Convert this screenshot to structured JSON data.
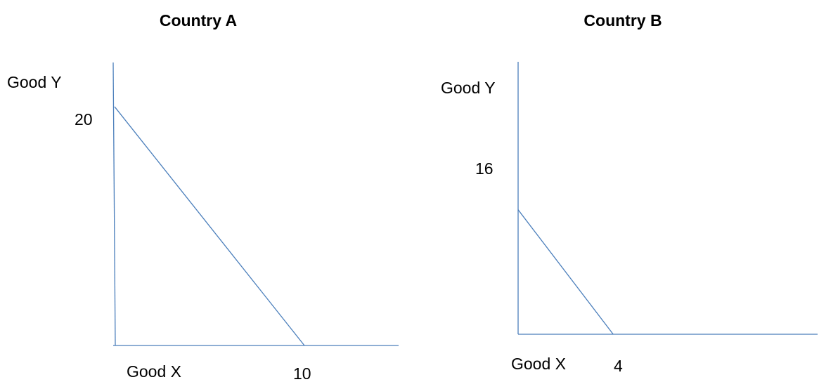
{
  "chart_data": [
    {
      "type": "line",
      "title": "Country A",
      "xlabel": "Good X",
      "ylabel": "Good Y",
      "xlim": [
        0,
        15
      ],
      "ylim": [
        0,
        23.7
      ],
      "grid": false,
      "series": [
        {
          "x": [
            0,
            10
          ],
          "y": [
            20,
            0
          ]
        }
      ],
      "intercepts": {
        "x": 10,
        "y": 20
      },
      "x_tick_label": "10",
      "y_tick_label": "20",
      "color": "#4a7ebb"
    },
    {
      "type": "line",
      "title": "Country B",
      "xlabel": "Good X",
      "ylabel": "Good Y",
      "xlim": [
        0,
        12.6
      ],
      "ylim": [
        0,
        35.1
      ],
      "grid": false,
      "series": [
        {
          "x": [
            0,
            4
          ],
          "y": [
            16,
            0
          ]
        }
      ],
      "intercepts": {
        "x": 4,
        "y": 16
      },
      "x_tick_label": "4",
      "y_tick_label": "16",
      "color": "#4a7ebb"
    }
  ]
}
